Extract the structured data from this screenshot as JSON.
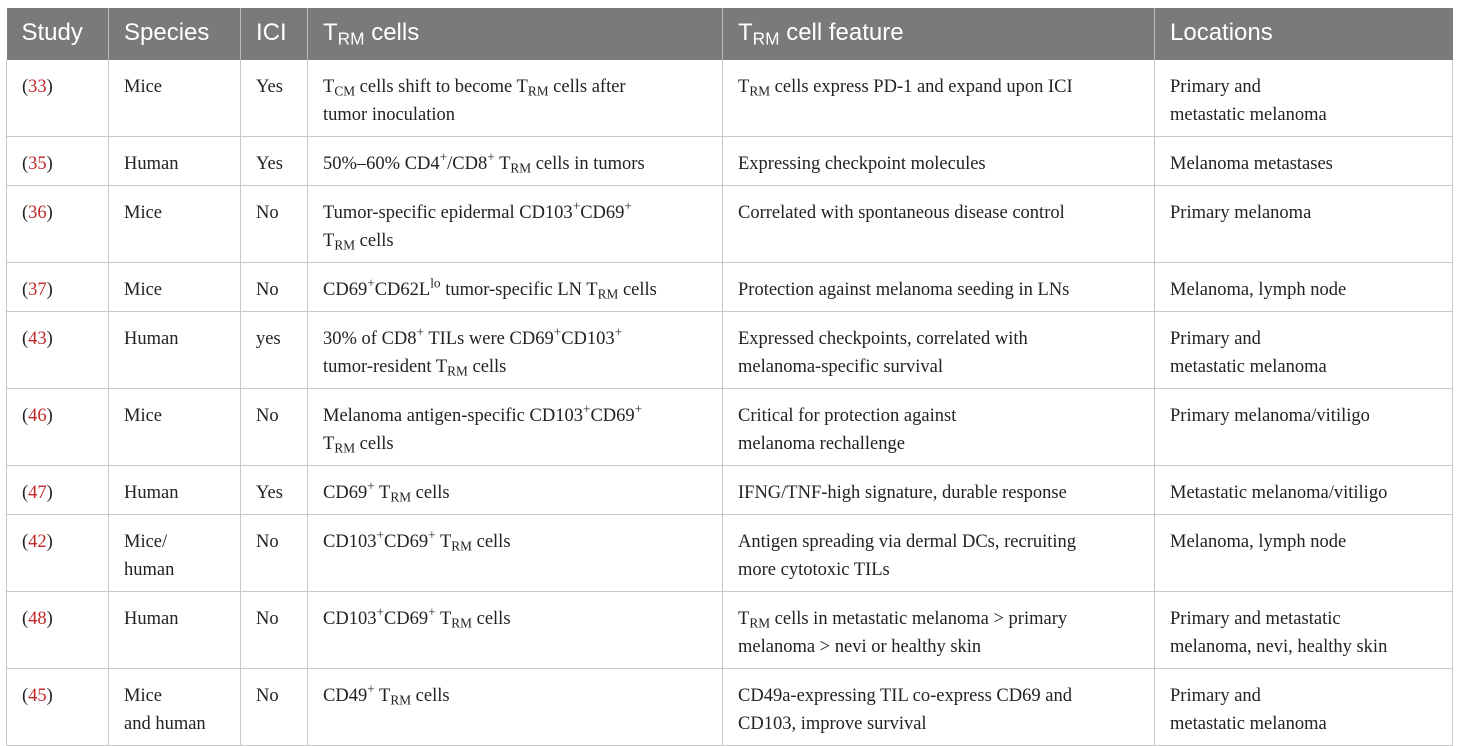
{
  "headers": {
    "study": "Study",
    "species": "Species",
    "ici": "ICI",
    "cells_prefix": "T",
    "cells_sub": "RM",
    "cells_suffix": " cells",
    "feature_prefix": "T",
    "feature_sub": "RM",
    "feature_suffix": " cell feature",
    "locations": "Locations"
  },
  "rows": [
    {
      "ref": "33",
      "species": [
        "Mice"
      ],
      "ici": "Yes",
      "cells": [
        [
          "T",
          ""
        ],
        [
          "CM",
          "sub"
        ],
        [
          " cells shift to become T",
          ""
        ],
        [
          "RM",
          "sub"
        ],
        [
          " cells after",
          ""
        ],
        [
          "\n",
          ""
        ],
        [
          "tumor inoculation",
          ""
        ]
      ],
      "feature": [
        [
          "T",
          ""
        ],
        [
          "RM",
          "sub"
        ],
        [
          " cells express PD-1 and expand upon ICI",
          ""
        ]
      ],
      "locations": [
        "Primary and",
        "metastatic melanoma"
      ]
    },
    {
      "ref": "35",
      "species": [
        "Human"
      ],
      "ici": "Yes",
      "cells": [
        [
          "50%–60% CD4",
          ""
        ],
        [
          "+",
          "sup"
        ],
        [
          "/CD8",
          ""
        ],
        [
          "+",
          "sup"
        ],
        [
          " T",
          ""
        ],
        [
          "RM",
          "sub"
        ],
        [
          " cells in tumors",
          ""
        ]
      ],
      "feature": [
        [
          "Expressing checkpoint molecules",
          ""
        ]
      ],
      "locations": [
        "Melanoma metastases"
      ]
    },
    {
      "ref": "36",
      "species": [
        "Mice"
      ],
      "ici": "No",
      "cells": [
        [
          "Tumor-specific epidermal CD103",
          ""
        ],
        [
          "+",
          "sup"
        ],
        [
          "CD69",
          ""
        ],
        [
          "+",
          "sup"
        ],
        [
          "\n",
          ""
        ],
        [
          "T",
          ""
        ],
        [
          "RM",
          "sub"
        ],
        [
          " cells",
          ""
        ]
      ],
      "feature": [
        [
          "Correlated with spontaneous disease control",
          ""
        ]
      ],
      "locations": [
        "Primary melanoma"
      ]
    },
    {
      "ref": "37",
      "species": [
        "Mice"
      ],
      "ici": "No",
      "cells": [
        [
          "CD69",
          ""
        ],
        [
          "+",
          "sup"
        ],
        [
          "CD62L",
          ""
        ],
        [
          "lo",
          "sup"
        ],
        [
          " tumor-specific LN T",
          ""
        ],
        [
          "RM",
          "sub"
        ],
        [
          " cells",
          ""
        ]
      ],
      "feature": [
        [
          "Protection against melanoma seeding in LNs",
          ""
        ]
      ],
      "locations": [
        "Melanoma, lymph node"
      ]
    },
    {
      "ref": "43",
      "species": [
        "Human"
      ],
      "ici": "yes",
      "cells": [
        [
          "30% of CD8",
          ""
        ],
        [
          "+",
          "sup"
        ],
        [
          " TILs were CD69",
          ""
        ],
        [
          "+",
          "sup"
        ],
        [
          "CD103",
          ""
        ],
        [
          "+",
          "sup"
        ],
        [
          "\n",
          ""
        ],
        [
          "tumor-resident T",
          ""
        ],
        [
          "RM",
          "sub"
        ],
        [
          " cells",
          ""
        ]
      ],
      "feature": [
        [
          "Expressed checkpoints, correlated with",
          ""
        ],
        [
          "\n",
          ""
        ],
        [
          "melanoma-specific survival",
          ""
        ]
      ],
      "locations": [
        "Primary and",
        "metastatic melanoma"
      ]
    },
    {
      "ref": "46",
      "species": [
        "Mice"
      ],
      "ici": "No",
      "cells": [
        [
          "Melanoma antigen-specific CD103",
          ""
        ],
        [
          "+",
          "sup"
        ],
        [
          "CD69",
          ""
        ],
        [
          "+",
          "sup"
        ],
        [
          "\n",
          ""
        ],
        [
          "T",
          ""
        ],
        [
          "RM",
          "sub"
        ],
        [
          " cells",
          ""
        ]
      ],
      "feature": [
        [
          "Critical for protection against",
          ""
        ],
        [
          "\n",
          ""
        ],
        [
          "melanoma rechallenge",
          ""
        ]
      ],
      "locations": [
        "Primary melanoma/vitiligo"
      ]
    },
    {
      "ref": "47",
      "species": [
        "Human"
      ],
      "ici": "Yes",
      "cells": [
        [
          "CD69",
          ""
        ],
        [
          "+",
          "sup"
        ],
        [
          " T",
          ""
        ],
        [
          "RM",
          "sub"
        ],
        [
          " cells",
          ""
        ]
      ],
      "feature": [
        [
          "IFNG/TNF-high signature, durable response",
          ""
        ]
      ],
      "locations": [
        "Metastatic melanoma/vitiligo"
      ]
    },
    {
      "ref": "42",
      "species": [
        "Mice/",
        "human"
      ],
      "ici": "No",
      "cells": [
        [
          "CD103",
          ""
        ],
        [
          "+",
          "sup"
        ],
        [
          "CD69",
          ""
        ],
        [
          "+",
          "sup"
        ],
        [
          " T",
          ""
        ],
        [
          "RM",
          "sub"
        ],
        [
          " cells",
          ""
        ]
      ],
      "feature": [
        [
          "Antigen spreading via dermal DCs, recruiting",
          ""
        ],
        [
          "\n",
          ""
        ],
        [
          "more cytotoxic TILs",
          ""
        ]
      ],
      "locations": [
        "Melanoma, lymph node"
      ]
    },
    {
      "ref": "48",
      "species": [
        "Human"
      ],
      "ici": "No",
      "cells": [
        [
          "CD103",
          ""
        ],
        [
          "+",
          "sup"
        ],
        [
          "CD69",
          ""
        ],
        [
          "+",
          "sup"
        ],
        [
          " T",
          ""
        ],
        [
          "RM",
          "sub"
        ],
        [
          " cells",
          ""
        ]
      ],
      "feature": [
        [
          "T",
          ""
        ],
        [
          "RM",
          "sub"
        ],
        [
          " cells in metastatic melanoma > primary",
          ""
        ],
        [
          "\n",
          ""
        ],
        [
          "melanoma > nevi or healthy skin",
          ""
        ]
      ],
      "locations": [
        "Primary and metastatic",
        "melanoma, nevi, healthy skin"
      ]
    },
    {
      "ref": "45",
      "species": [
        "Mice",
        "and human"
      ],
      "ici": "No",
      "cells": [
        [
          "CD49",
          ""
        ],
        [
          "+",
          "sup"
        ],
        [
          " T",
          ""
        ],
        [
          "RM",
          "sub"
        ],
        [
          " cells",
          ""
        ]
      ],
      "feature": [
        [
          "CD49a-expressing TIL co-express CD69 and",
          ""
        ],
        [
          "\n",
          ""
        ],
        [
          "CD103, improve survival",
          ""
        ]
      ],
      "locations": [
        "Primary and",
        "metastatic melanoma"
      ]
    }
  ]
}
